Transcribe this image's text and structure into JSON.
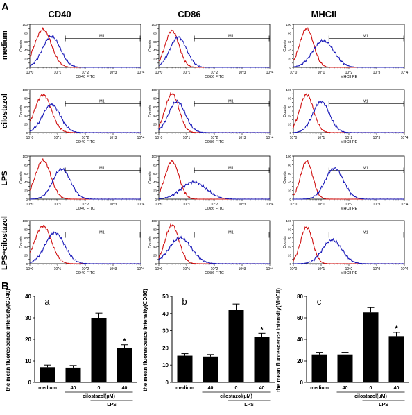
{
  "figure": {
    "panel_labels": [
      "A",
      "B"
    ],
    "column_headers": [
      "CD40",
      "CD86",
      "MHCII"
    ],
    "row_labels": [
      "medium",
      "cilostazol",
      "LPS",
      "LPS+cilostazol"
    ]
  },
  "colors": {
    "control_curve": "#d01010",
    "marker_curve": "#1818b8",
    "bar": "#000000",
    "axis": "#000000"
  },
  "chart_data": [
    {
      "type": "line",
      "subtype": "flow-cytometry-histogram",
      "row": "medium",
      "column": "CD40",
      "xlabel": "CD40 FITC",
      "ylabel": "Counts",
      "x_scale": "log",
      "xlim": [
        1,
        10000
      ],
      "ylim": [
        0,
        100
      ],
      "yticks": [
        "0",
        "10",
        "20",
        "30",
        "40",
        "50",
        "60",
        "70",
        "80",
        "90",
        "100"
      ],
      "xticks": [
        "10^0",
        "10^1",
        "10^2",
        "10^3",
        "10^4"
      ],
      "gate_label": "M1",
      "series": [
        {
          "peak_x": 3,
          "peak_y": 88,
          "sigma": 0.3
        },
        {
          "peak_x": 6,
          "peak_y": 72,
          "sigma": 0.32
        }
      ]
    },
    {
      "type": "line",
      "subtype": "flow-cytometry-histogram",
      "row": "medium",
      "column": "CD86",
      "xlabel": "CD86 FITC",
      "ylabel": "Counts",
      "x_scale": "log",
      "xlim": [
        1,
        10000
      ],
      "ylim": [
        0,
        100
      ],
      "yticks": [
        "0",
        "10",
        "20",
        "30",
        "40",
        "50",
        "60",
        "70",
        "80",
        "90",
        "100"
      ],
      "xticks": [
        "10^0",
        "10^1",
        "10^2",
        "10^3",
        "10^4"
      ],
      "gate_label": "M1",
      "series": [
        {
          "peak_x": 3,
          "peak_y": 85,
          "sigma": 0.25
        },
        {
          "peak_x": 5,
          "peak_y": 70,
          "sigma": 0.3
        }
      ]
    },
    {
      "type": "line",
      "subtype": "flow-cytometry-histogram",
      "row": "medium",
      "column": "MHCII",
      "xlabel": "MHCII PE",
      "ylabel": "Counts",
      "x_scale": "log",
      "xlim": [
        1,
        10000
      ],
      "ylim": [
        0,
        100
      ],
      "yticks": [
        "0",
        "10",
        "20",
        "30",
        "40",
        "50",
        "60",
        "70",
        "80",
        "90",
        "100"
      ],
      "xticks": [
        "10^0",
        "10^1",
        "10^2",
        "10^3",
        "10^4"
      ],
      "gate_label": "M1",
      "series": [
        {
          "peak_x": 3,
          "peak_y": 90,
          "sigma": 0.25
        },
        {
          "peak_x": 12,
          "peak_y": 62,
          "sigma": 0.38
        }
      ]
    },
    {
      "type": "line",
      "subtype": "flow-cytometry-histogram",
      "row": "cilostazol",
      "column": "CD40",
      "xlabel": "CD40 FITC",
      "ylabel": "Counts",
      "x_scale": "log",
      "xlim": [
        1,
        10000
      ],
      "ylim": [
        0,
        100
      ],
      "yticks": [
        "0",
        "10",
        "20",
        "30",
        "40",
        "50",
        "60",
        "70",
        "80",
        "90",
        "100"
      ],
      "xticks": [
        "10^0",
        "10^1",
        "10^2",
        "10^3",
        "10^4"
      ],
      "gate_label": "M1",
      "series": [
        {
          "peak_x": 3,
          "peak_y": 88,
          "sigma": 0.3
        },
        {
          "peak_x": 6,
          "peak_y": 65,
          "sigma": 0.32
        }
      ]
    },
    {
      "type": "line",
      "subtype": "flow-cytometry-histogram",
      "row": "cilostazol",
      "column": "CD86",
      "xlabel": "CD86 FITC",
      "ylabel": "Counts",
      "x_scale": "log",
      "xlim": [
        1,
        10000
      ],
      "ylim": [
        0,
        100
      ],
      "yticks": [
        "0",
        "10",
        "20",
        "30",
        "40",
        "50",
        "60",
        "70",
        "80",
        "90",
        "100"
      ],
      "xticks": [
        "10^0",
        "10^1",
        "10^2",
        "10^3",
        "10^4"
      ],
      "gate_label": "M1",
      "series": [
        {
          "peak_x": 3,
          "peak_y": 90,
          "sigma": 0.25
        },
        {
          "peak_x": 4.5,
          "peak_y": 72,
          "sigma": 0.3
        }
      ]
    },
    {
      "type": "line",
      "subtype": "flow-cytometry-histogram",
      "row": "cilostazol",
      "column": "MHCII",
      "xlabel": "MHCII PE",
      "ylabel": "Counts",
      "x_scale": "log",
      "xlim": [
        1,
        10000
      ],
      "ylim": [
        0,
        100
      ],
      "yticks": [
        "0",
        "10",
        "20",
        "30",
        "40",
        "50",
        "60",
        "70",
        "80",
        "90",
        "100"
      ],
      "xticks": [
        "10^0",
        "10^1",
        "10^2",
        "10^3",
        "10^4"
      ],
      "gate_label": "M1",
      "series": [
        {
          "peak_x": 3,
          "peak_y": 88,
          "sigma": 0.25
        },
        {
          "peak_x": 10,
          "peak_y": 72,
          "sigma": 0.3
        }
      ]
    },
    {
      "type": "line",
      "subtype": "flow-cytometry-histogram",
      "row": "LPS",
      "column": "CD40",
      "xlabel": "CD40 FITC",
      "ylabel": "Counts",
      "x_scale": "log",
      "xlim": [
        1,
        10000
      ],
      "ylim": [
        0,
        100
      ],
      "yticks": [
        "0",
        "10",
        "20",
        "30",
        "40",
        "50",
        "60",
        "70",
        "80",
        "90",
        "100"
      ],
      "xticks": [
        "10^0",
        "10^1",
        "10^2",
        "10^3",
        "10^4"
      ],
      "gate_label": "M1",
      "series": [
        {
          "peak_x": 3,
          "peak_y": 90,
          "sigma": 0.28
        },
        {
          "peak_x": 14,
          "peak_y": 70,
          "sigma": 0.32
        }
      ]
    },
    {
      "type": "line",
      "subtype": "flow-cytometry-histogram",
      "row": "LPS",
      "column": "CD86",
      "xlabel": "CD86 FITC",
      "ylabel": "Counts",
      "x_scale": "log",
      "xlim": [
        1,
        10000
      ],
      "ylim": [
        0,
        100
      ],
      "yticks": [
        "0",
        "10",
        "20",
        "30",
        "40",
        "50",
        "60",
        "70",
        "80",
        "90",
        "100"
      ],
      "xticks": [
        "10^0",
        "10^1",
        "10^2",
        "10^3",
        "10^4"
      ],
      "gate_label": "M1",
      "series": [
        {
          "peak_x": 3,
          "peak_y": 88,
          "sigma": 0.25
        },
        {
          "peak_x": 18,
          "peak_y": 40,
          "sigma": 0.45
        }
      ]
    },
    {
      "type": "line",
      "subtype": "flow-cytometry-histogram",
      "row": "LPS",
      "column": "MHCII",
      "xlabel": "MHCII PE",
      "ylabel": "Counts",
      "x_scale": "log",
      "xlim": [
        1,
        10000
      ],
      "ylim": [
        0,
        100
      ],
      "yticks": [
        "0",
        "10",
        "20",
        "30",
        "40",
        "50",
        "60",
        "70",
        "80",
        "90",
        "100"
      ],
      "xticks": [
        "10^0",
        "10^1",
        "10^2",
        "10^3",
        "10^4"
      ],
      "gate_label": "M1",
      "series": [
        {
          "peak_x": 3,
          "peak_y": 88,
          "sigma": 0.22
        },
        {
          "peak_x": 30,
          "peak_y": 72,
          "sigma": 0.33
        }
      ]
    },
    {
      "type": "line",
      "subtype": "flow-cytometry-histogram",
      "row": "LPS+cilostazol",
      "column": "CD40",
      "xlabel": "CD40 FITC",
      "ylabel": "Counts",
      "x_scale": "log",
      "xlim": [
        1,
        10000
      ],
      "ylim": [
        0,
        100
      ],
      "yticks": [
        "0",
        "10",
        "20",
        "30",
        "40",
        "50",
        "60",
        "70",
        "80",
        "90",
        "100"
      ],
      "xticks": [
        "10^0",
        "10^1",
        "10^2",
        "10^3",
        "10^4"
      ],
      "gate_label": "M1",
      "series": [
        {
          "peak_x": 3,
          "peak_y": 88,
          "sigma": 0.3
        },
        {
          "peak_x": 8,
          "peak_y": 72,
          "sigma": 0.35
        }
      ]
    },
    {
      "type": "line",
      "subtype": "flow-cytometry-histogram",
      "row": "LPS+cilostazol",
      "column": "CD86",
      "xlabel": "CD86 FITC",
      "ylabel": "Counts",
      "x_scale": "log",
      "xlim": [
        1,
        10000
      ],
      "ylim": [
        0,
        100
      ],
      "yticks": [
        "0",
        "10",
        "20",
        "30",
        "40",
        "50",
        "60",
        "70",
        "80",
        "90",
        "100"
      ],
      "xticks": [
        "10^0",
        "10^1",
        "10^2",
        "10^3",
        "10^4"
      ],
      "gate_label": "M1",
      "series": [
        {
          "peak_x": 3,
          "peak_y": 90,
          "sigma": 0.25
        },
        {
          "peak_x": 6,
          "peak_y": 60,
          "sigma": 0.4
        }
      ]
    },
    {
      "type": "line",
      "subtype": "flow-cytometry-histogram",
      "row": "LPS+cilostazol",
      "column": "MHCII",
      "xlabel": "MHCII PE",
      "ylabel": "Counts",
      "x_scale": "log",
      "xlim": [
        1,
        10000
      ],
      "ylim": [
        0,
        100
      ],
      "yticks": [
        "0",
        "10",
        "20",
        "30",
        "40",
        "50",
        "60",
        "70",
        "80",
        "90",
        "100"
      ],
      "xticks": [
        "10^0",
        "10^1",
        "10^2",
        "10^3",
        "10^4"
      ],
      "gate_label": "M1",
      "series": [
        {
          "peak_x": 3,
          "peak_y": 85,
          "sigma": 0.22
        },
        {
          "peak_x": 25,
          "peak_y": 55,
          "sigma": 0.35
        }
      ]
    },
    {
      "type": "bar",
      "panel_tag": "a",
      "ylabel": "the mean fluorescence intensity(CD40)",
      "ylim": [
        0,
        40
      ],
      "yticks": [
        0,
        10,
        20,
        30,
        40
      ],
      "categories": [
        "medium",
        "40",
        "0",
        "40"
      ],
      "group_label": "cilostazol(μM)",
      "condition_label": "LPS",
      "values": [
        7,
        6.8,
        30,
        16
      ],
      "errors": [
        1,
        1,
        2.2,
        1.5
      ],
      "significant": [
        false,
        false,
        false,
        true
      ],
      "significance_mark": "*"
    },
    {
      "type": "bar",
      "panel_tag": "b",
      "ylabel": "the mean fluorescence intensity(CD86)",
      "ylim": [
        0,
        50
      ],
      "yticks": [
        0,
        10,
        20,
        30,
        40,
        50
      ],
      "categories": [
        "medium",
        "40",
        "0",
        "40"
      ],
      "group_label": "cilostazol(μM)",
      "condition_label": "LPS",
      "values": [
        15.5,
        15,
        42,
        26.5
      ],
      "errors": [
        1.2,
        1.2,
        3.5,
        2
      ],
      "significant": [
        false,
        false,
        false,
        true
      ],
      "significance_mark": "*"
    },
    {
      "type": "bar",
      "panel_tag": "c",
      "ylabel": "the mean fluorescence intensity(MHCII)",
      "ylim": [
        0,
        80
      ],
      "yticks": [
        0,
        20,
        40,
        60,
        80
      ],
      "categories": [
        "medium",
        "40",
        "0",
        "40"
      ],
      "group_label": "cilostazol(μM)",
      "condition_label": "LPS",
      "values": [
        26,
        26,
        65,
        43
      ],
      "errors": [
        2,
        2,
        4.5,
        3.5
      ],
      "significant": [
        false,
        false,
        false,
        true
      ],
      "significance_mark": "*"
    }
  ]
}
